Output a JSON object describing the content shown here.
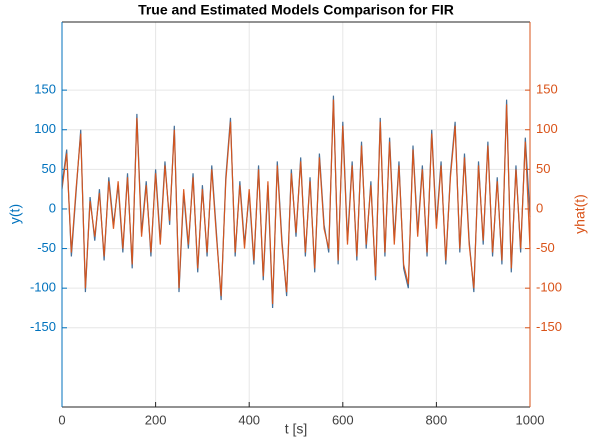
{
  "chart_data": {
    "type": "line",
    "title": "True and Estimated Models Comparison for FIR",
    "xlabel": "t [s]",
    "ylabel": "y(t)",
    "y2label": "yhat(t)",
    "x": [
      0,
      10,
      20,
      30,
      40,
      50,
      60,
      70,
      80,
      90,
      100,
      110,
      120,
      130,
      140,
      150,
      160,
      170,
      180,
      190,
      200,
      210,
      220,
      230,
      240,
      250,
      260,
      270,
      280,
      290,
      300,
      310,
      320,
      330,
      340,
      350,
      360,
      370,
      380,
      390,
      400,
      410,
      420,
      430,
      440,
      450,
      460,
      470,
      480,
      490,
      500,
      510,
      520,
      530,
      540,
      550,
      560,
      570,
      580,
      590,
      600,
      610,
      620,
      630,
      640,
      650,
      660,
      670,
      680,
      690,
      700,
      710,
      720,
      730,
      740,
      750,
      760,
      770,
      780,
      790,
      800,
      810,
      820,
      830,
      840,
      850,
      860,
      870,
      880,
      890,
      900,
      910,
      920,
      930,
      940,
      950,
      960,
      970,
      980,
      990,
      1000
    ],
    "series": [
      {
        "color": "#3b6894",
        "values": [
          30,
          75,
          -60,
          20,
          100,
          -105,
          15,
          -40,
          25,
          -65,
          40,
          -20,
          30,
          -55,
          45,
          -75,
          120,
          -30,
          35,
          -60,
          50,
          -40,
          60,
          -20,
          105,
          -105,
          20,
          -50,
          45,
          -80,
          30,
          -60,
          55,
          -30,
          -115,
          40,
          115,
          -60,
          35,
          -45,
          20,
          -70,
          55,
          -90,
          30,
          -125,
          60,
          -40,
          -110,
          50,
          -35,
          65,
          -60,
          40,
          -80,
          70,
          -20,
          -55,
          143,
          -70,
          110,
          -40,
          60,
          -65,
          85,
          -50,
          35,
          -90,
          115,
          -60,
          90,
          -40,
          60,
          -75,
          -100,
          80,
          -30,
          55,
          -60,
          100,
          -20,
          60,
          -70,
          45,
          110,
          -55,
          70,
          -40,
          -105,
          60,
          -45,
          85,
          -60,
          40,
          -70,
          138,
          -80,
          55,
          -55,
          90,
          -10
        ]
      },
      {
        "color": "#d95319",
        "axis": "y2",
        "values": [
          25,
          70,
          -55,
          25,
          95,
          -100,
          10,
          -35,
          20,
          -60,
          35,
          -25,
          35,
          -50,
          40,
          -70,
          115,
          -35,
          30,
          -55,
          45,
          -45,
          55,
          -15,
          100,
          -100,
          25,
          -45,
          40,
          -75,
          25,
          -55,
          50,
          -35,
          -110,
          35,
          110,
          -55,
          30,
          -50,
          25,
          -65,
          50,
          -85,
          35,
          -120,
          55,
          -45,
          -105,
          45,
          -30,
          60,
          -55,
          35,
          -75,
          65,
          -25,
          -50,
          138,
          -65,
          105,
          -45,
          55,
          -60,
          80,
          -45,
          30,
          -85,
          110,
          -55,
          85,
          -45,
          55,
          -70,
          -95,
          75,
          -35,
          50,
          -55,
          95,
          -25,
          55,
          -65,
          40,
          105,
          -50,
          65,
          -45,
          -100,
          55,
          -40,
          80,
          -55,
          35,
          -65,
          132,
          -75,
          50,
          -50,
          85,
          -50
        ]
      }
    ],
    "xlim": [
      0,
      1000
    ],
    "xticks": [
      0,
      200,
      400,
      600,
      800,
      1000
    ],
    "ylim": [
      -250,
      236
    ],
    "yticks": [
      -150,
      -100,
      -50,
      0,
      50,
      100,
      150
    ],
    "y2lim": [
      -250,
      236
    ],
    "y2ticks": [
      -150,
      -100,
      -50,
      0,
      50,
      100,
      150
    ],
    "y_color": "#0072bd",
    "y2_color": "#d95319",
    "grid": true
  }
}
